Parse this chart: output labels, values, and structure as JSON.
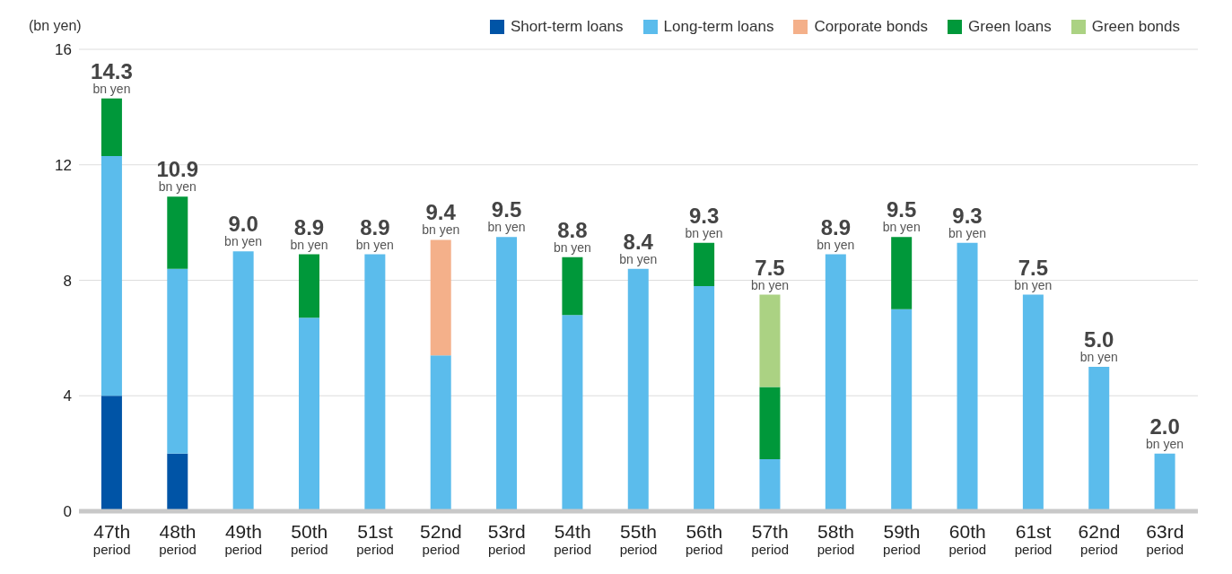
{
  "chart_data": {
    "type": "bar",
    "stacked": true,
    "ylabel": "(bn yen)",
    "categories": [
      "47th period",
      "48th period",
      "49th period",
      "50th period",
      "51st period",
      "52nd period",
      "53rd period",
      "54th period",
      "55th period",
      "56th period",
      "57th period",
      "58th period",
      "59th period",
      "60th period",
      "61st period",
      "62nd period",
      "63rd period"
    ],
    "series": [
      {
        "name": "Short-term loans",
        "color": "#0054a6",
        "values": [
          4.0,
          2.0,
          null,
          null,
          null,
          null,
          null,
          null,
          null,
          null,
          null,
          null,
          null,
          null,
          null,
          null,
          null
        ]
      },
      {
        "name": "Long-term loans",
        "color": "#5bbcec",
        "values": [
          8.3,
          6.4,
          9.0,
          6.7,
          8.9,
          5.4,
          9.5,
          6.8,
          8.4,
          7.8,
          1.8,
          8.9,
          7.0,
          9.3,
          7.5,
          5.0,
          2.0
        ]
      },
      {
        "name": "Corporate bonds",
        "color": "#f4b08a",
        "values": [
          null,
          null,
          null,
          null,
          null,
          4.0,
          null,
          null,
          null,
          null,
          null,
          null,
          null,
          null,
          null,
          null,
          null
        ]
      },
      {
        "name": "Green loans",
        "color": "#00983a",
        "values": [
          2.0,
          2.5,
          null,
          2.2,
          null,
          null,
          null,
          2.0,
          null,
          1.5,
          2.5,
          null,
          2.5,
          null,
          null,
          null,
          null
        ]
      },
      {
        "name": "Green bonds",
        "color": "#abd283",
        "values": [
          null,
          null,
          null,
          null,
          null,
          null,
          null,
          null,
          null,
          null,
          3.2,
          null,
          null,
          null,
          null,
          null,
          null
        ]
      }
    ],
    "totals": [
      "14.3 bn yen",
      "10.9 bn yen",
      "9.0 bn yen",
      "8.9 bn yen",
      "8.9 bn yen",
      "9.4 bn yen",
      "9.5 bn yen",
      "8.8 bn yen",
      "8.4 bn yen",
      "9.3 bn yen",
      "7.5 bn yen",
      "8.9 bn yen",
      "9.5 bn yen",
      "9.3 bn yen",
      "7.5 bn yen",
      "5.0 bn yen",
      "2.0 bn yen"
    ],
    "ylim": [
      0,
      16
    ],
    "yticks": [
      0,
      4,
      8,
      12,
      16
    ],
    "grid": "y",
    "legend": "top right"
  }
}
